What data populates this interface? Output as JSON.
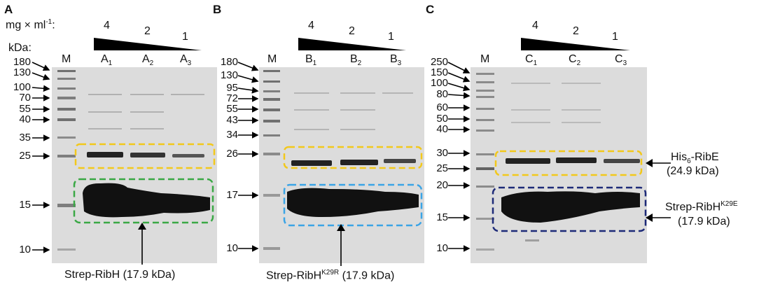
{
  "units": {
    "conc": "mg × ml",
    "conc_sup": "-1",
    "conc_tail": ":",
    "kda": "kDa:"
  },
  "panels": [
    {
      "letter": "A",
      "concentrations": [
        "4",
        "2",
        "1"
      ],
      "lanes": {
        "marker": "M",
        "samples": [
          {
            "base": "A",
            "sub": "1"
          },
          {
            "base": "A",
            "sub": "2"
          },
          {
            "base": "A",
            "sub": "3"
          }
        ]
      },
      "markers": [
        "180",
        "130",
        "100",
        "70",
        "55",
        "40",
        "35",
        "25",
        "15",
        "10"
      ],
      "annotation": {
        "main": "Strep-RibH (17.9 kDa)"
      }
    },
    {
      "letter": "B",
      "concentrations": [
        "4",
        "2",
        "1"
      ],
      "lanes": {
        "marker": "M",
        "samples": [
          {
            "base": "B",
            "sub": "1"
          },
          {
            "base": "B",
            "sub": "2"
          },
          {
            "base": "B",
            "sub": "3"
          }
        ]
      },
      "markers": [
        "180",
        "130",
        "95",
        "72",
        "55",
        "43",
        "34",
        "26",
        "17",
        "10"
      ],
      "annotation": {
        "pre": "Strep-RibH",
        "sup": "K29R",
        "post": " (17.9 kDa)"
      }
    },
    {
      "letter": "C",
      "concentrations": [
        "4",
        "2",
        "1"
      ],
      "lanes": {
        "marker": "M",
        "samples": [
          {
            "base": "C",
            "sub": "1"
          },
          {
            "base": "C",
            "sub": "2"
          },
          {
            "base": "C",
            "sub": "3"
          }
        ]
      },
      "markers": [
        "250",
        "150",
        "100",
        "80",
        "60",
        "50",
        "40",
        "30",
        "25",
        "20",
        "15",
        "10"
      ],
      "annotations": {
        "ribe_line1": "His",
        "ribe_sub": "6",
        "ribe_line1_post": "-RibE",
        "ribe_line2": "(24.9 kDa)",
        "ribh_pre": "Strep-RibH",
        "ribh_sup": "K29E",
        "ribh_line2": "(17.9 kDa)"
      }
    }
  ],
  "colors": {
    "yellow_box": "#f2c81b",
    "green_box": "#3aa845",
    "lightblue_box": "#3ba4e6",
    "darkblue_box": "#1d2a78",
    "gel": "#dcdcdc",
    "band": "#111111"
  }
}
